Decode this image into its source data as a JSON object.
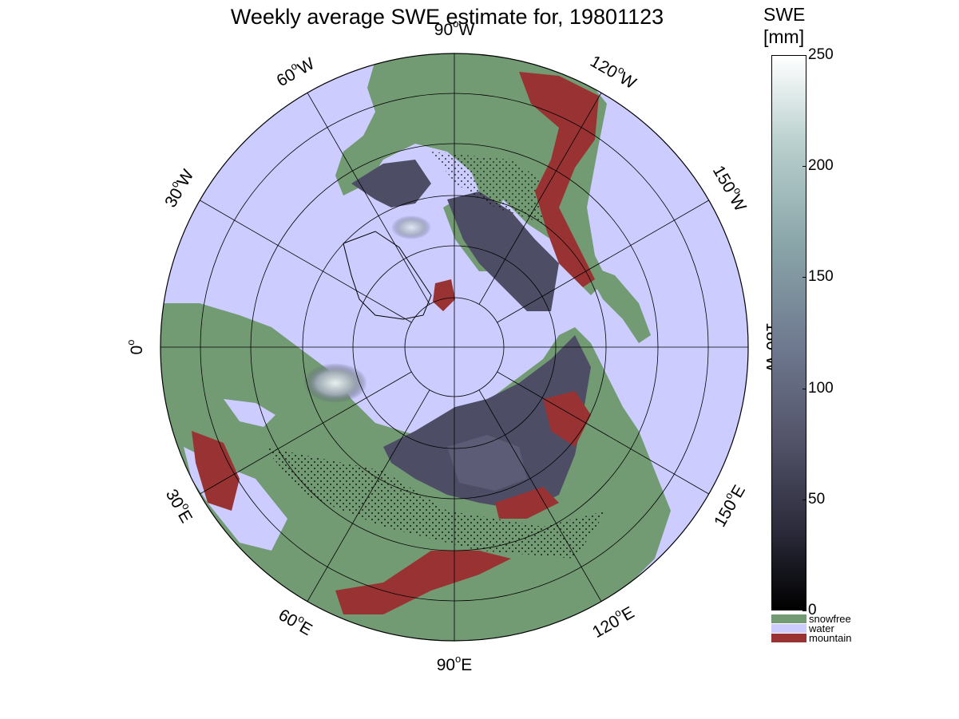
{
  "title": "Weekly average SWE estimate for, 19801123",
  "colorbar": {
    "title_line1": "SWE",
    "title_line2": "[mm]",
    "ticks": [
      "250",
      "200",
      "150",
      "100",
      "50",
      "0"
    ],
    "tick_values": [
      250,
      200,
      150,
      100,
      50,
      0
    ],
    "range": [
      0,
      250
    ],
    "colormap": "bone",
    "categories": [
      {
        "label": "snowfree",
        "color": "#739b73"
      },
      {
        "label": "water",
        "color": "#ccccff"
      },
      {
        "label": "mountain",
        "color": "#993333"
      }
    ]
  },
  "map": {
    "projection": "north-polar-stereographic",
    "ocean_color": "#ccccff",
    "land_color": "#739b73",
    "mountain_color": "#993333",
    "longitude_labels": [
      {
        "id": "90w",
        "text": "90",
        "suffix": "W",
        "lon": -90
      },
      {
        "id": "60w",
        "text": "60",
        "suffix": "W",
        "lon": -60
      },
      {
        "id": "120w",
        "text": "120",
        "suffix": "W",
        "lon": -120
      },
      {
        "id": "30w",
        "text": "30",
        "suffix": "W",
        "lon": -30
      },
      {
        "id": "150w",
        "text": "150",
        "suffix": "W",
        "lon": -150
      },
      {
        "id": "0",
        "text": "0",
        "suffix": "",
        "lon": 0
      },
      {
        "id": "180w",
        "text": "180",
        "suffix": "W",
        "lon": 180
      },
      {
        "id": "30e",
        "text": "30",
        "suffix": "E",
        "lon": 30
      },
      {
        "id": "150e",
        "text": "150",
        "suffix": "E",
        "lon": 150
      },
      {
        "id": "60e",
        "text": "60",
        "suffix": "E",
        "lon": 60
      },
      {
        "id": "120e",
        "text": "120",
        "suffix": "E",
        "lon": 120
      },
      {
        "id": "90e",
        "text": "90",
        "suffix": "E",
        "lon": 90
      }
    ]
  }
}
